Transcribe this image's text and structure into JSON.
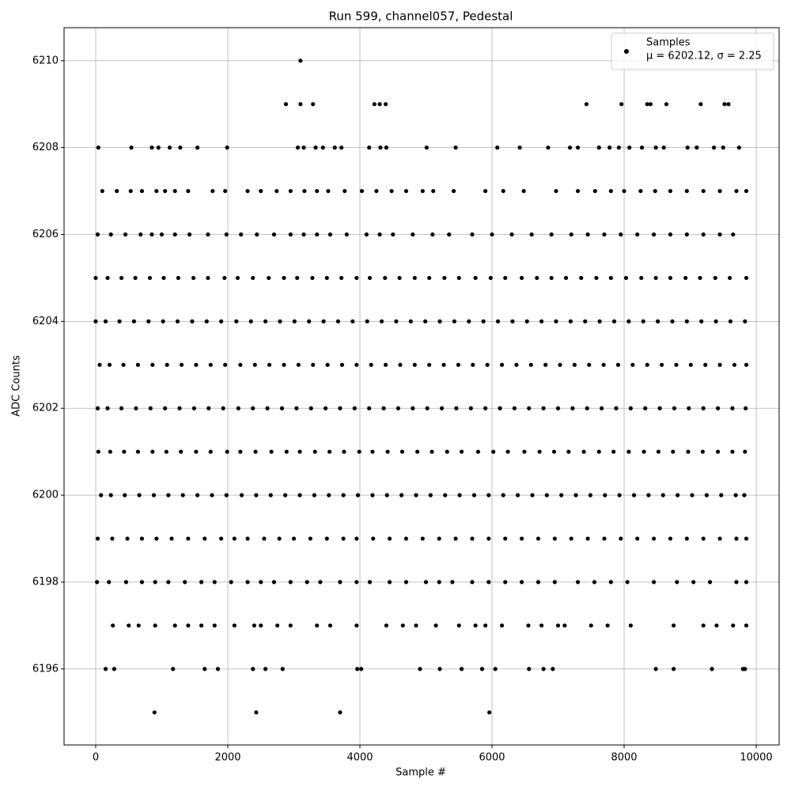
{
  "chart_data": {
    "type": "scatter",
    "title": "Run 599, channel057, Pedestal",
    "x_label": "Sample #",
    "y_label": "ADC Counts",
    "xlim": [
      -479,
      10347
    ],
    "ylim": [
      6194.25,
      6210.76
    ],
    "xticks": [
      0,
      2000,
      4000,
      6000,
      8000,
      10000
    ],
    "yticks": [
      6196,
      6198,
      6200,
      6202,
      6204,
      6206,
      6208,
      6210
    ],
    "grid": true,
    "legend": "upper right",
    "legend_note": "μ = 6202.12, σ = 2.25",
    "series": [
      {
        "name": "Samples",
        "color": "#000000",
        "x": [
          3100,
          2880,
          3100,
          3290,
          4220,
          4300,
          4390,
          7430,
          7960,
          8350,
          8400,
          8640,
          9160,
          9520,
          9580,
          40,
          540,
          850,
          950,
          1120,
          1280,
          1540,
          1990,
          3060,
          3150,
          3330,
          3440,
          3620,
          3720,
          4140,
          4310,
          4400,
          5010,
          5450,
          6080,
          6420,
          6850,
          7180,
          7300,
          7620,
          7780,
          7920,
          8080,
          8270,
          8480,
          8600,
          8960,
          9100,
          9360,
          9500,
          9740,
          100,
          320,
          530,
          700,
          920,
          1050,
          1200,
          1400,
          1770,
          1960,
          2300,
          2500,
          2740,
          2950,
          3160,
          3350,
          3520,
          3770,
          4030,
          4250,
          4480,
          4700,
          4950,
          5110,
          5420,
          5900,
          6170,
          6480,
          6970,
          7300,
          7560,
          7800,
          8000,
          8250,
          8470,
          8700,
          8950,
          9200,
          9450,
          9700,
          9850,
          30,
          230,
          450,
          680,
          850,
          1000,
          1200,
          1420,
          1700,
          1980,
          2200,
          2440,
          2700,
          2950,
          3150,
          3350,
          3550,
          3800,
          4100,
          4300,
          4500,
          4800,
          5100,
          5350,
          5700,
          6000,
          6300,
          6600,
          6900,
          7200,
          7450,
          7700,
          7950,
          8200,
          8450,
          8700,
          8950,
          9200,
          9450,
          9650,
          0,
          180,
          390,
          600,
          820,
          1030,
          1250,
          1480,
          1700,
          1950,
          2150,
          2380,
          2620,
          2850,
          3050,
          3280,
          3500,
          3720,
          3950,
          4150,
          4380,
          4600,
          4830,
          5050,
          5280,
          5500,
          5750,
          5980,
          6200,
          6450,
          6680,
          6900,
          7120,
          7350,
          7580,
          7800,
          8030,
          8260,
          8480,
          8700,
          8930,
          9150,
          9380,
          9600,
          9850,
          0,
          150,
          360,
          580,
          800,
          1020,
          1240,
          1460,
          1680,
          1900,
          2130,
          2350,
          2570,
          2790,
          3010,
          3230,
          3450,
          3670,
          3890,
          4110,
          4330,
          4550,
          4770,
          4990,
          5210,
          5430,
          5650,
          5870,
          6090,
          6310,
          6530,
          6750,
          6970,
          7190,
          7410,
          7630,
          7850,
          8070,
          8290,
          8510,
          8730,
          8950,
          9170,
          9390,
          9610,
          9830,
          60,
          210,
          420,
          640,
          860,
          1080,
          1300,
          1520,
          1740,
          1960,
          2190,
          2410,
          2630,
          2850,
          3070,
          3290,
          3510,
          3730,
          3950,
          4170,
          4390,
          4610,
          4830,
          5050,
          5270,
          5490,
          5710,
          5930,
          6150,
          6370,
          6590,
          6810,
          7030,
          7250,
          7470,
          7690,
          7910,
          8130,
          8350,
          8570,
          8790,
          9010,
          9230,
          9450,
          9670,
          9850,
          30,
          180,
          390,
          610,
          830,
          1050,
          1270,
          1490,
          1710,
          1930,
          2160,
          2380,
          2600,
          2820,
          3040,
          3260,
          3480,
          3700,
          3920,
          4140,
          4360,
          4580,
          4800,
          5020,
          5240,
          5460,
          5680,
          5900,
          6120,
          6340,
          6560,
          6780,
          7000,
          7220,
          7440,
          7660,
          7880,
          8100,
          8320,
          8540,
          8760,
          8980,
          9200,
          9420,
          9640,
          9840,
          40,
          220,
          430,
          640,
          860,
          1070,
          1290,
          1520,
          1740,
          1990,
          2190,
          2420,
          2660,
          2890,
          3090,
          3320,
          3540,
          3760,
          3990,
          4190,
          4420,
          4640,
          4870,
          5090,
          5320,
          5540,
          5790,
          6020,
          6240,
          6490,
          6720,
          6940,
          7160,
          7390,
          7620,
          7840,
          8070,
          8300,
          8520,
          8740,
          8970,
          9190,
          9420,
          9640,
          9830,
          80,
          230,
          440,
          660,
          880,
          1100,
          1320,
          1540,
          1760,
          1980,
          2210,
          2430,
          2650,
          2870,
          3090,
          3310,
          3530,
          3750,
          3970,
          4190,
          4410,
          4630,
          4850,
          5070,
          5290,
          5510,
          5730,
          5950,
          6170,
          6390,
          6610,
          6830,
          7050,
          7270,
          7490,
          7710,
          7930,
          8150,
          8370,
          8590,
          8810,
          9030,
          9250,
          9470,
          9690,
          9820,
          30,
          250,
          480,
          700,
          920,
          1150,
          1400,
          1650,
          1900,
          2100,
          2300,
          2550,
          2780,
          3000,
          3250,
          3500,
          3750,
          3950,
          4200,
          4450,
          4700,
          4950,
          5200,
          5450,
          5700,
          5950,
          6200,
          6450,
          6700,
          6950,
          7200,
          7450,
          7700,
          7950,
          8200,
          8450,
          8700,
          8950,
          9200,
          9450,
          9700,
          9850,
          20,
          200,
          460,
          700,
          900,
          1100,
          1350,
          1600,
          1800,
          2050,
          2300,
          2500,
          2700,
          2950,
          3200,
          3400,
          3700,
          3950,
          4150,
          4450,
          4700,
          5000,
          5200,
          5400,
          5700,
          5950,
          6200,
          6450,
          6700,
          6950,
          7300,
          7550,
          7800,
          8050,
          8450,
          8800,
          9050,
          9300,
          9700,
          9850,
          260,
          500,
          650,
          900,
          1200,
          1400,
          1600,
          1800,
          2100,
          2400,
          2500,
          2750,
          2950,
          3350,
          3550,
          3950,
          4400,
          4650,
          4850,
          5150,
          5500,
          5750,
          5900,
          6150,
          6550,
          6750,
          7000,
          7100,
          7500,
          7750,
          8100,
          8750,
          9200,
          9400,
          9650,
          9850,
          150,
          280,
          1170,
          1650,
          1850,
          2380,
          2570,
          2830,
          3960,
          4020,
          4910,
          5210,
          5540,
          5850,
          6050,
          6560,
          6780,
          6920,
          8480,
          8750,
          9330,
          9800,
          9830,
          890,
          2430,
          3700,
          5960
        ],
        "values": [
          6210,
          6209,
          6209,
          6209,
          6209,
          6209,
          6209,
          6209,
          6209,
          6209,
          6209,
          6209,
          6209,
          6209,
          6209,
          6208,
          6208,
          6208,
          6208,
          6208,
          6208,
          6208,
          6208,
          6208,
          6208,
          6208,
          6208,
          6208,
          6208,
          6208,
          6208,
          6208,
          6208,
          6208,
          6208,
          6208,
          6208,
          6208,
          6208,
          6208,
          6208,
          6208,
          6208,
          6208,
          6208,
          6208,
          6208,
          6208,
          6208,
          6208,
          6208,
          6207,
          6207,
          6207,
          6207,
          6207,
          6207,
          6207,
          6207,
          6207,
          6207,
          6207,
          6207,
          6207,
          6207,
          6207,
          6207,
          6207,
          6207,
          6207,
          6207,
          6207,
          6207,
          6207,
          6207,
          6207,
          6207,
          6207,
          6207,
          6207,
          6207,
          6207,
          6207,
          6207,
          6207,
          6207,
          6207,
          6207,
          6207,
          6207,
          6207,
          6207,
          6206,
          6206,
          6206,
          6206,
          6206,
          6206,
          6206,
          6206,
          6206,
          6206,
          6206,
          6206,
          6206,
          6206,
          6206,
          6206,
          6206,
          6206,
          6206,
          6206,
          6206,
          6206,
          6206,
          6206,
          6206,
          6206,
          6206,
          6206,
          6206,
          6206,
          6206,
          6206,
          6206,
          6206,
          6206,
          6206,
          6206,
          6206,
          6206,
          6206,
          6205,
          6205,
          6205,
          6205,
          6205,
          6205,
          6205,
          6205,
          6205,
          6205,
          6205,
          6205,
          6205,
          6205,
          6205,
          6205,
          6205,
          6205,
          6205,
          6205,
          6205,
          6205,
          6205,
          6205,
          6205,
          6205,
          6205,
          6205,
          6205,
          6205,
          6205,
          6205,
          6205,
          6205,
          6205,
          6205,
          6205,
          6205,
          6205,
          6205,
          6205,
          6205,
          6205,
          6205,
          6205,
          6204,
          6204,
          6204,
          6204,
          6204,
          6204,
          6204,
          6204,
          6204,
          6204,
          6204,
          6204,
          6204,
          6204,
          6204,
          6204,
          6204,
          6204,
          6204,
          6204,
          6204,
          6204,
          6204,
          6204,
          6204,
          6204,
          6204,
          6204,
          6204,
          6204,
          6204,
          6204,
          6204,
          6204,
          6204,
          6204,
          6204,
          6204,
          6204,
          6204,
          6204,
          6204,
          6204,
          6204,
          6204,
          6204,
          6203,
          6203,
          6203,
          6203,
          6203,
          6203,
          6203,
          6203,
          6203,
          6203,
          6203,
          6203,
          6203,
          6203,
          6203,
          6203,
          6203,
          6203,
          6203,
          6203,
          6203,
          6203,
          6203,
          6203,
          6203,
          6203,
          6203,
          6203,
          6203,
          6203,
          6203,
          6203,
          6203,
          6203,
          6203,
          6203,
          6203,
          6203,
          6203,
          6203,
          6203,
          6203,
          6203,
          6203,
          6203,
          6203,
          6202,
          6202,
          6202,
          6202,
          6202,
          6202,
          6202,
          6202,
          6202,
          6202,
          6202,
          6202,
          6202,
          6202,
          6202,
          6202,
          6202,
          6202,
          6202,
          6202,
          6202,
          6202,
          6202,
          6202,
          6202,
          6202,
          6202,
          6202,
          6202,
          6202,
          6202,
          6202,
          6202,
          6202,
          6202,
          6202,
          6202,
          6202,
          6202,
          6202,
          6202,
          6202,
          6202,
          6202,
          6202,
          6202,
          6201,
          6201,
          6201,
          6201,
          6201,
          6201,
          6201,
          6201,
          6201,
          6201,
          6201,
          6201,
          6201,
          6201,
          6201,
          6201,
          6201,
          6201,
          6201,
          6201,
          6201,
          6201,
          6201,
          6201,
          6201,
          6201,
          6201,
          6201,
          6201,
          6201,
          6201,
          6201,
          6201,
          6201,
          6201,
          6201,
          6201,
          6201,
          6201,
          6201,
          6201,
          6201,
          6201,
          6201,
          6201,
          6200,
          6200,
          6200,
          6200,
          6200,
          6200,
          6200,
          6200,
          6200,
          6200,
          6200,
          6200,
          6200,
          6200,
          6200,
          6200,
          6200,
          6200,
          6200,
          6200,
          6200,
          6200,
          6200,
          6200,
          6200,
          6200,
          6200,
          6200,
          6200,
          6200,
          6200,
          6200,
          6200,
          6200,
          6200,
          6200,
          6200,
          6200,
          6200,
          6200,
          6200,
          6200,
          6200,
          6200,
          6200,
          6200,
          6199,
          6199,
          6199,
          6199,
          6199,
          6199,
          6199,
          6199,
          6199,
          6199,
          6199,
          6199,
          6199,
          6199,
          6199,
          6199,
          6199,
          6199,
          6199,
          6199,
          6199,
          6199,
          6199,
          6199,
          6199,
          6199,
          6199,
          6199,
          6199,
          6199,
          6199,
          6199,
          6199,
          6199,
          6199,
          6199,
          6199,
          6199,
          6199,
          6199,
          6199,
          6199,
          6198,
          6198,
          6198,
          6198,
          6198,
          6198,
          6198,
          6198,
          6198,
          6198,
          6198,
          6198,
          6198,
          6198,
          6198,
          6198,
          6198,
          6198,
          6198,
          6198,
          6198,
          6198,
          6198,
          6198,
          6198,
          6198,
          6198,
          6198,
          6198,
          6198,
          6198,
          6198,
          6198,
          6198,
          6198,
          6198,
          6198,
          6198,
          6198,
          6198,
          6197,
          6197,
          6197,
          6197,
          6197,
          6197,
          6197,
          6197,
          6197,
          6197,
          6197,
          6197,
          6197,
          6197,
          6197,
          6197,
          6197,
          6197,
          6197,
          6197,
          6197,
          6197,
          6197,
          6197,
          6197,
          6197,
          6197,
          6197,
          6197,
          6197,
          6197,
          6197,
          6197,
          6197,
          6197,
          6197,
          6196,
          6196,
          6196,
          6196,
          6196,
          6196,
          6196,
          6196,
          6196,
          6196,
          6196,
          6196,
          6196,
          6196,
          6196,
          6196,
          6196,
          6196,
          6196,
          6196,
          6196,
          6196,
          6196,
          6195,
          6195,
          6195,
          6195
        ]
      }
    ]
  }
}
